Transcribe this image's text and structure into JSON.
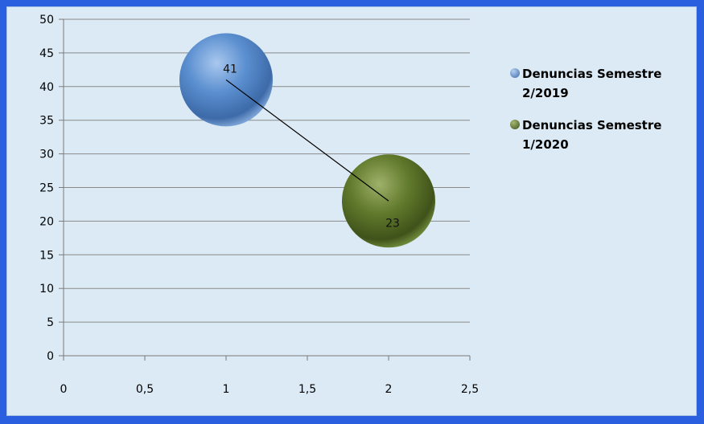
{
  "chart_data": {
    "type": "bubble",
    "x_ticks": [
      "0",
      "0,5",
      "1",
      "1,5",
      "2",
      "2,5"
    ],
    "y_ticks": [
      "0",
      "5",
      "10",
      "15",
      "20",
      "25",
      "30",
      "35",
      "40",
      "45",
      "50"
    ],
    "xlim": [
      0,
      2.5
    ],
    "ylim": [
      0,
      50
    ],
    "grid": "horizontal",
    "legend_position": "right",
    "series": [
      {
        "name": "Denuncias Semestre 2/2019",
        "x": 1,
        "y": 41,
        "label": "41",
        "color": "#4f81bd"
      },
      {
        "name": "Denuncias Semestre 1/2020",
        "x": 2,
        "y": 23,
        "label": "23",
        "color": "#5a6e2a"
      }
    ],
    "trendline": {
      "from": [
        1,
        41
      ],
      "to": [
        2,
        23
      ]
    }
  }
}
